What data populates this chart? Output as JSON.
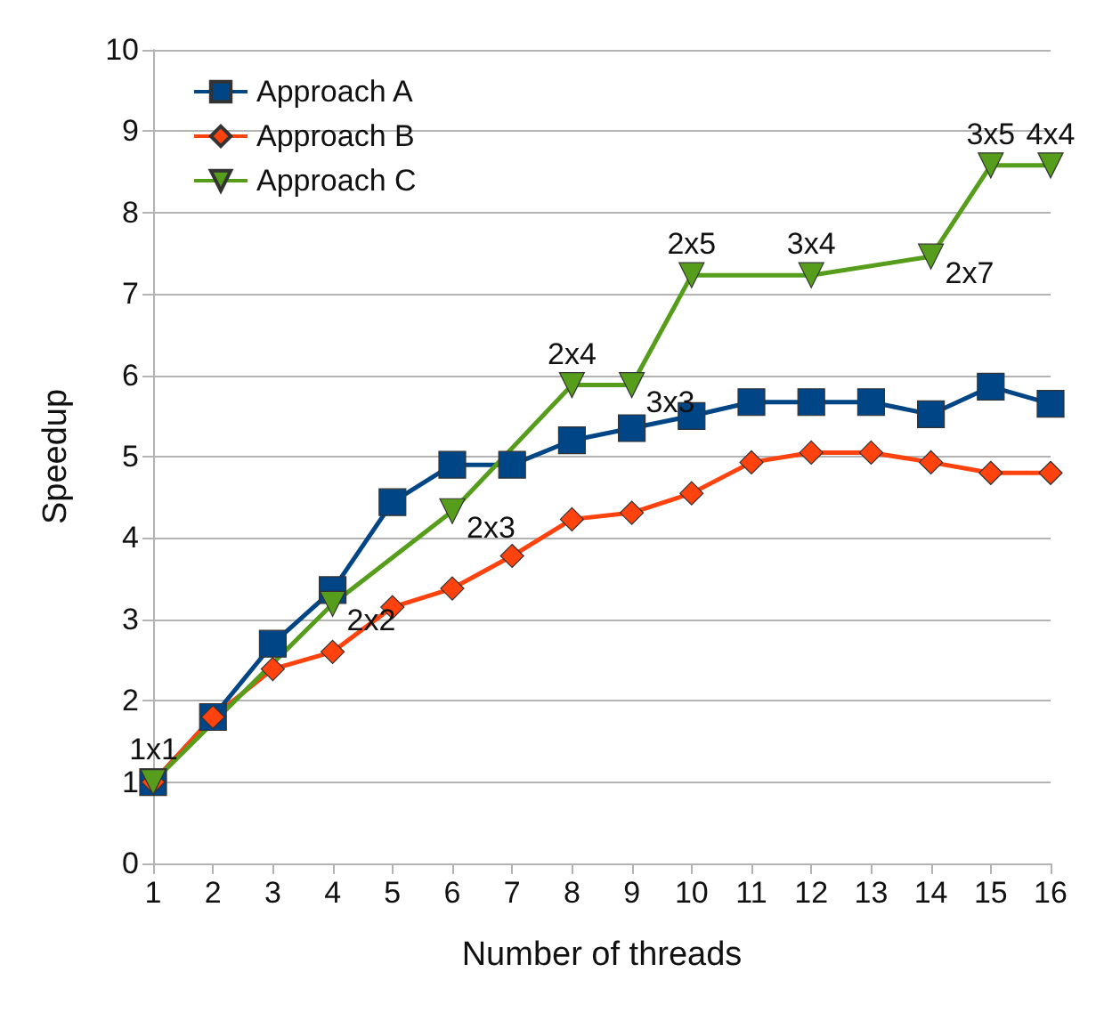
{
  "chart_data": {
    "type": "line",
    "xlabel": "Number of threads",
    "ylabel": "Speedup",
    "x": [
      1,
      2,
      3,
      4,
      5,
      6,
      7,
      8,
      9,
      10,
      11,
      12,
      13,
      14,
      15,
      16
    ],
    "series": [
      {
        "name": "Approach A",
        "color": "#004586",
        "marker": "square",
        "values": [
          1.0,
          1.8,
          2.7,
          3.36,
          4.44,
          4.9,
          4.9,
          5.2,
          5.35,
          5.5,
          5.67,
          5.67,
          5.67,
          5.52,
          5.86,
          5.65
        ]
      },
      {
        "name": "Approach B",
        "color": "#ff420e",
        "marker": "diamond",
        "values": [
          1.0,
          1.8,
          2.39,
          2.6,
          3.15,
          3.38,
          3.78,
          4.23,
          4.31,
          4.55,
          4.93,
          5.05,
          5.05,
          4.93,
          4.8,
          4.8
        ]
      },
      {
        "name": "Approach C",
        "color": "#579d1c",
        "marker": "triangle",
        "x": [
          1,
          4,
          6,
          8,
          9,
          10,
          12,
          14,
          15,
          16
        ],
        "values": [
          1.0,
          3.19,
          4.33,
          5.88,
          5.88,
          7.23,
          7.23,
          7.46,
          8.58,
          8.58
        ]
      }
    ],
    "annotations": [
      {
        "text": "1x1",
        "x": 1,
        "y": 1.0
      },
      {
        "text": "2x2",
        "x": 4,
        "y": 3.19
      },
      {
        "text": "2x3",
        "x": 6,
        "y": 4.33
      },
      {
        "text": "2x4",
        "x": 8,
        "y": 5.88
      },
      {
        "text": "3x3",
        "x": 9,
        "y": 5.88
      },
      {
        "text": "2x5",
        "x": 10,
        "y": 7.23
      },
      {
        "text": "3x4",
        "x": 12,
        "y": 7.23
      },
      {
        "text": "2x7",
        "x": 14,
        "y": 7.46
      },
      {
        "text": "3x5",
        "x": 15,
        "y": 8.58
      },
      {
        "text": "4x4",
        "x": 16,
        "y": 8.58
      }
    ],
    "xlim": [
      1,
      16
    ],
    "xticks": [
      1,
      2,
      3,
      4,
      5,
      6,
      7,
      8,
      9,
      10,
      11,
      12,
      13,
      14,
      15,
      16
    ],
    "ylim": [
      0,
      10
    ],
    "yticks": [
      0,
      1,
      2,
      3,
      4,
      5,
      6,
      7,
      8,
      9,
      10
    ],
    "grid": "y",
    "legend": "top left"
  }
}
